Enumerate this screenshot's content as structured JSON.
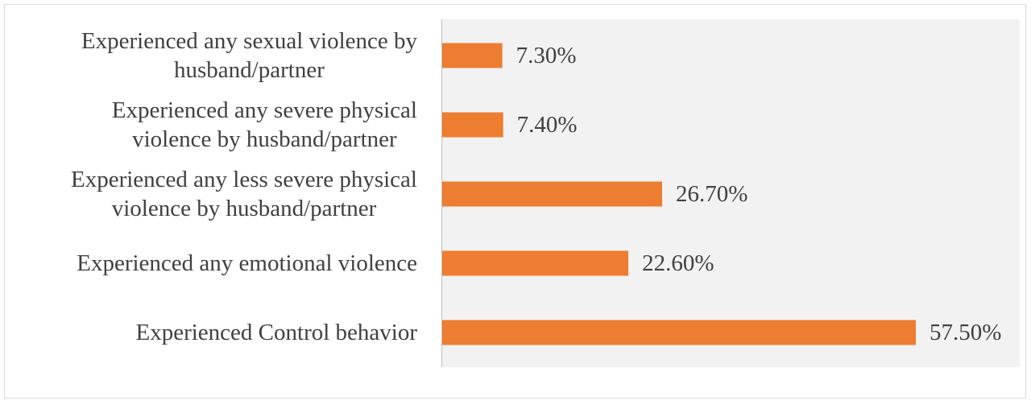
{
  "chart_data": {
    "type": "bar",
    "orientation": "horizontal",
    "title": "",
    "xlabel": "",
    "ylabel": "",
    "grid": false,
    "legend": "none",
    "xlim": [
      0,
      70
    ],
    "categories": [
      [
        "Experienced any sexual violence by",
        "husband/partner"
      ],
      [
        "Experienced any severe physical",
        "violence  by husband/partner"
      ],
      [
        "Experienced any less severe physical",
        "violence  by husband/partner"
      ],
      [
        "Experienced any emotional violence"
      ],
      [
        "Experienced Control behavior"
      ]
    ],
    "values": [
      7.3,
      7.4,
      26.7,
      22.6,
      57.5
    ],
    "data_labels": [
      "7.30%",
      "7.40%",
      "26.70%",
      "22.60%",
      "57.50%"
    ],
    "colors": {
      "bar": "#ed7d31",
      "plot_background": "#f2f2f2",
      "axis_line": "#bfbfbf",
      "text": "#404040"
    }
  }
}
